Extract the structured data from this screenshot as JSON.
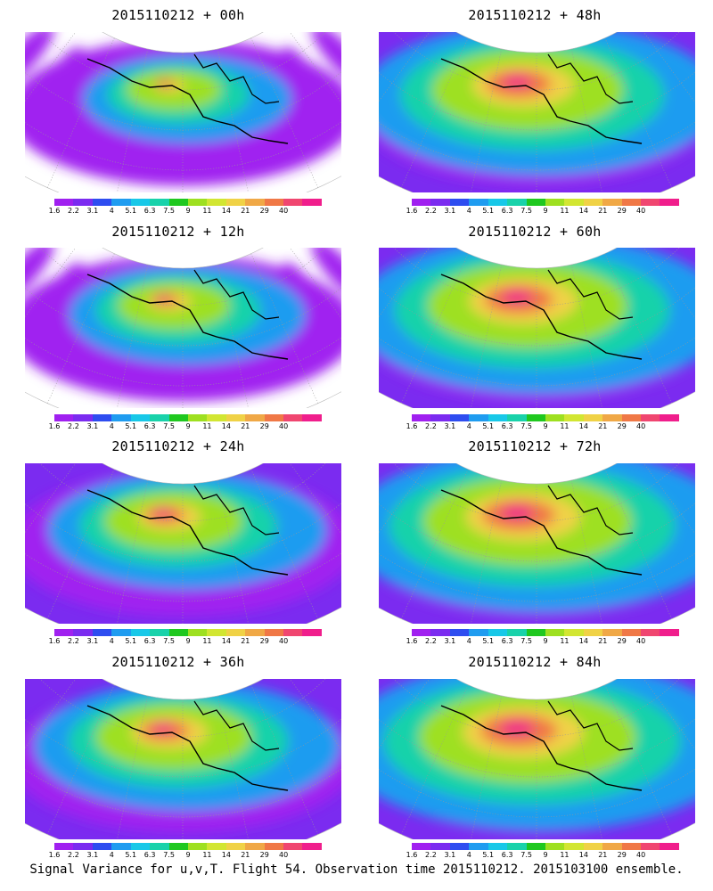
{
  "panels": [
    {
      "title": "2015110212 + 00h"
    },
    {
      "title": "2015110212 + 48h"
    },
    {
      "title": "2015110212 + 12h"
    },
    {
      "title": "2015110212 + 60h"
    },
    {
      "title": "2015110212 + 24h"
    },
    {
      "title": "2015110212 + 72h"
    },
    {
      "title": "2015110212 + 36h"
    },
    {
      "title": "2015110212 + 84h"
    }
  ],
  "colorbar": {
    "labels": [
      "1.6",
      "2.2",
      "3.1",
      "4",
      "5.1",
      "6.3",
      "7.5",
      "9",
      "11",
      "14",
      "21",
      "29",
      "40"
    ],
    "colors": [
      "#a020f0",
      "#7b2bf0",
      "#2e4df0",
      "#1f9cf0",
      "#18c8e8",
      "#19d2aa",
      "#1fc81f",
      "#9ee020",
      "#d2e632",
      "#f0d246",
      "#f0a846",
      "#f07846",
      "#f04670",
      "#f01e8c"
    ]
  },
  "caption": "Signal Variance for u,v,T. Flight 54. Observation time 2015110212. 2015103100 ensemble."
}
